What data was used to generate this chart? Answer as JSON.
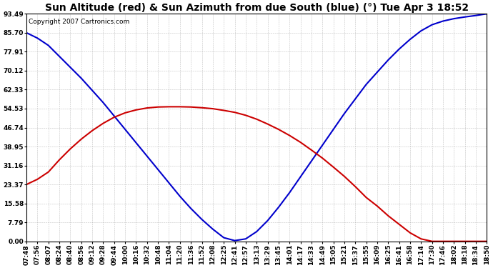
{
  "title": "Sun Altitude (red) & Sun Azimuth from due South (blue) (°) Tue Apr 3 18:52",
  "copyright_text": "Copyright 2007 Cartronics.com",
  "y_ticks": [
    0.0,
    7.79,
    15.58,
    23.37,
    31.16,
    38.95,
    46.74,
    54.53,
    62.33,
    70.12,
    77.91,
    85.7,
    93.49
  ],
  "x_labels": [
    "07:48",
    "07:56",
    "08:07",
    "08:24",
    "08:40",
    "08:56",
    "09:12",
    "09:28",
    "09:44",
    "10:00",
    "10:16",
    "10:32",
    "10:48",
    "11:04",
    "11:20",
    "11:36",
    "11:52",
    "12:08",
    "12:25",
    "12:41",
    "12:57",
    "13:13",
    "13:29",
    "13:45",
    "14:01",
    "14:17",
    "14:33",
    "14:49",
    "15:05",
    "15:21",
    "15:37",
    "15:55",
    "16:09",
    "16:25",
    "16:41",
    "16:58",
    "17:14",
    "17:30",
    "17:46",
    "18:02",
    "18:18",
    "18:34",
    "18:50"
  ],
  "blue_y": [
    85.7,
    83.5,
    80.5,
    76.0,
    71.5,
    67.0,
    62.0,
    57.0,
    51.5,
    46.0,
    40.5,
    35.0,
    29.5,
    24.0,
    18.5,
    13.5,
    9.0,
    5.0,
    1.5,
    0.3,
    1.0,
    4.0,
    8.5,
    14.0,
    20.0,
    26.5,
    33.0,
    39.5,
    46.0,
    52.5,
    58.5,
    64.5,
    69.5,
    74.5,
    79.0,
    83.0,
    86.5,
    89.0,
    90.5,
    91.5,
    92.2,
    92.8,
    93.49
  ],
  "red_y": [
    23.37,
    25.5,
    28.5,
    33.5,
    38.0,
    42.0,
    45.5,
    48.5,
    51.0,
    52.8,
    54.0,
    54.8,
    55.2,
    55.3,
    55.3,
    55.2,
    54.9,
    54.5,
    53.8,
    53.0,
    51.8,
    50.2,
    48.2,
    46.0,
    43.5,
    40.7,
    37.5,
    34.2,
    30.5,
    26.7,
    22.5,
    18.0,
    14.5,
    10.5,
    7.0,
    3.5,
    1.0,
    0.0,
    0.0,
    0.0,
    0.0,
    0.0,
    0.0
  ],
  "blue_color": "#0000cc",
  "red_color": "#cc0000",
  "bg_color": "#ffffff",
  "plot_bg_color": "#ffffff",
  "grid_color": "#999999",
  "title_fontsize": 10,
  "tick_fontsize": 6.5,
  "copyright_fontsize": 6.5,
  "y_min": 0.0,
  "y_max": 93.49,
  "figwidth": 6.9,
  "figheight": 3.75,
  "dpi": 100
}
